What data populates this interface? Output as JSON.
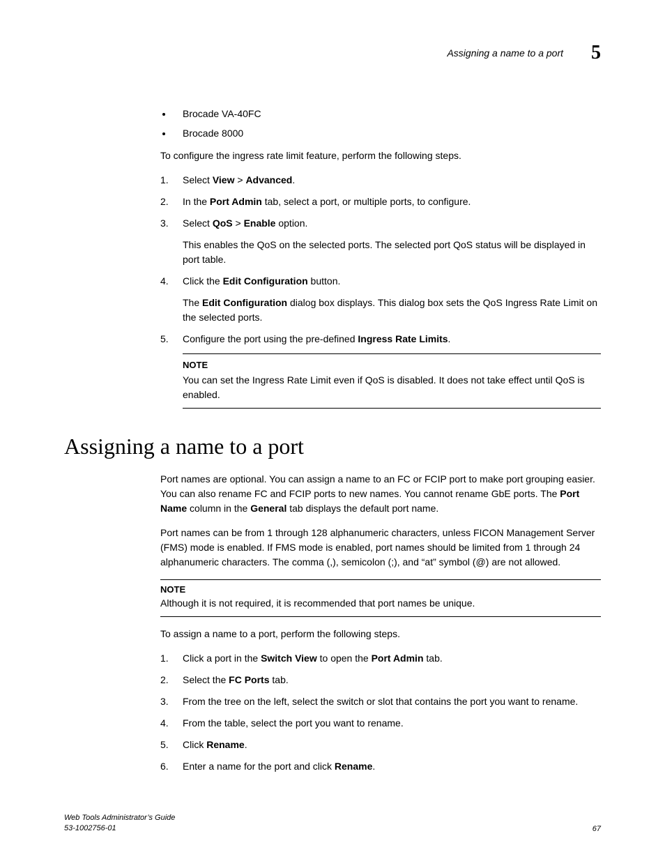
{
  "header": {
    "running_title": "Assigning a name to a port",
    "chapter_number": "5"
  },
  "bullets": {
    "b1": "Brocade VA-40FC",
    "b2": "Brocade 8000"
  },
  "intro1": "To configure the ingress rate limit feature, perform the following steps.",
  "steps1": {
    "s1": {
      "pre": "Select ",
      "b1": "View",
      "mid": " > ",
      "b2": "Advanced",
      "post": "."
    },
    "s2": {
      "pre": "In the ",
      "b1": "Port Admin",
      "post": " tab, select a port, or multiple ports, to configure."
    },
    "s3": {
      "pre": "Select ",
      "b1": "QoS",
      "mid": " > ",
      "b2": "Enable",
      "post": " option.",
      "sub": "This enables the QoS on the selected ports. The selected port QoS status will be displayed in port table."
    },
    "s4": {
      "pre": "Click the ",
      "b1": "Edit Configuration",
      "post": " button.",
      "sub_pre": "The ",
      "sub_b1": "Edit Configuration",
      "sub_post": " dialog box displays. This dialog box sets the QoS Ingress Rate Limit on the selected ports."
    },
    "s5": {
      "pre": "Configure the port using the pre-defined ",
      "b1": "Ingress Rate Limits",
      "post": "."
    }
  },
  "note1": {
    "label": "NOTE",
    "body": "You can set the Ingress Rate Limit even if QoS is disabled. It does not take effect until QoS is enabled."
  },
  "heading": "Assigning a name to a port",
  "para1": {
    "t1": "Port names are optional. You can assign a name to an FC or FCIP port to make port grouping easier. You can also rename FC and FCIP ports to new names. You cannot rename GbE ports. The ",
    "b1": "Port Name",
    "t2": " column in the ",
    "b2": "General",
    "t3": " tab displays the default port name."
  },
  "para2": "Port names can be from 1 through 128 alphanumeric characters, unless FICON Management Server (FMS) mode is enabled. If FMS mode is enabled, port names should be limited from 1 through 24 alphanumeric characters. The comma (,), semicolon (;), and “at” symbol (@) are not allowed.",
  "note2": {
    "label": "NOTE",
    "body": "Although it is not required, it is recommended that port names be unique."
  },
  "intro2": "To assign a name to a port, perform the following steps.",
  "steps2": {
    "s1": {
      "pre": "Click a port in the ",
      "b1": "Switch View",
      "mid": " to open the ",
      "b2": "Port Admin",
      "post": " tab."
    },
    "s2": {
      "pre": "Select the ",
      "b1": "FC Ports",
      "post": " tab."
    },
    "s3": {
      "text": "From the tree on the left, select the switch or slot that contains the port you want to rename."
    },
    "s4": {
      "text": "From the table, select the port you want to rename."
    },
    "s5": {
      "pre": "Click ",
      "b1": "Rename",
      "post": "."
    },
    "s6": {
      "pre": "Enter a name for the port and click ",
      "b1": "Rename",
      "post": "."
    }
  },
  "footer": {
    "title": "Web Tools Administrator’s Guide",
    "docnum": "53-1002756-01",
    "page": "67"
  }
}
